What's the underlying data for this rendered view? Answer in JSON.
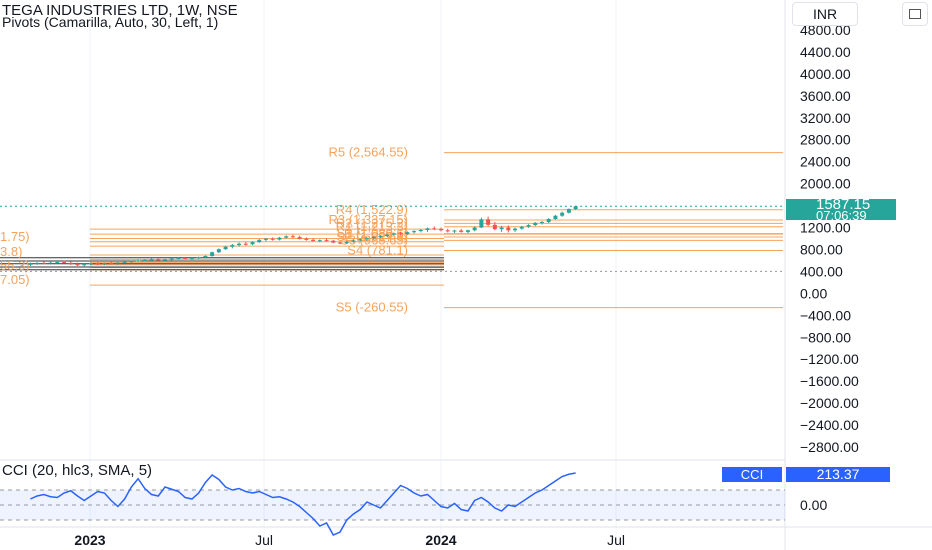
{
  "header": {
    "title": "TEGA INDUSTRIES LTD, 1W, NSE",
    "indicator": "Pivots (Camarilla, Auto, 30, Left, 1)",
    "currency": "INR"
  },
  "price_tag": {
    "price": "1587.15",
    "countdown": "07:06:39",
    "color": "#26a69a"
  },
  "cci_panel": {
    "label": "CCI (20, hlc3, SMA, 5)",
    "tag_name": "CCI",
    "tag_value": "213.37"
  },
  "colors": {
    "up": "#26a69a",
    "down": "#ef5350",
    "pivot": "#f7a35c",
    "cci": "#2962ff",
    "price_line": "#26a69a"
  },
  "chart_data": [
    {
      "type": "candlestick",
      "y_ticks": [
        "4800.00",
        "4400.00",
        "4000.00",
        "3600.00",
        "3200.00",
        "2800.00",
        "2400.00",
        "2000.00",
        "1200.00",
        "800.00",
        "400.00",
        "0.00",
        "−400.00",
        "−800.00",
        "−1200.00",
        "−1600.00",
        "−2000.00",
        "−2400.00",
        "−2800.00"
      ],
      "y_tick_values": [
        4800,
        4400,
        4000,
        3600,
        3200,
        2800,
        2400,
        2000,
        1200,
        800,
        400,
        0,
        -400,
        -800,
        -1200,
        -1600,
        -2000,
        -2400,
        -2800
      ],
      "x_ticks": [
        "2023",
        "Jul",
        "2024",
        "Jul"
      ],
      "x_tick_dates": [
        "2023-01-01",
        "2023-07-01",
        "2024-01-01",
        "2024-07-01"
      ],
      "ohlc": [
        {
          "d": "2022-10-31",
          "o": 520,
          "h": 560,
          "l": 500,
          "c": 540
        },
        {
          "d": "2022-11-07",
          "o": 540,
          "h": 570,
          "l": 520,
          "c": 555
        },
        {
          "d": "2022-11-14",
          "o": 555,
          "h": 580,
          "l": 530,
          "c": 545
        },
        {
          "d": "2022-11-21",
          "o": 545,
          "h": 575,
          "l": 525,
          "c": 560
        },
        {
          "d": "2022-11-28",
          "o": 560,
          "h": 590,
          "l": 540,
          "c": 570
        },
        {
          "d": "2022-12-05",
          "o": 570,
          "h": 600,
          "l": 545,
          "c": 555
        },
        {
          "d": "2022-12-12",
          "o": 555,
          "h": 580,
          "l": 520,
          "c": 530
        },
        {
          "d": "2022-12-19",
          "o": 530,
          "h": 560,
          "l": 500,
          "c": 515
        },
        {
          "d": "2022-12-26",
          "o": 515,
          "h": 545,
          "l": 495,
          "c": 530
        },
        {
          "d": "2023-01-02",
          "o": 530,
          "h": 560,
          "l": 510,
          "c": 545
        },
        {
          "d": "2023-01-09",
          "o": 545,
          "h": 570,
          "l": 520,
          "c": 535
        },
        {
          "d": "2023-01-16",
          "o": 535,
          "h": 560,
          "l": 515,
          "c": 550
        },
        {
          "d": "2023-01-23",
          "o": 550,
          "h": 575,
          "l": 530,
          "c": 540
        },
        {
          "d": "2023-01-30",
          "o": 540,
          "h": 570,
          "l": 520,
          "c": 560
        },
        {
          "d": "2023-02-06",
          "o": 560,
          "h": 590,
          "l": 545,
          "c": 575
        },
        {
          "d": "2023-02-13",
          "o": 575,
          "h": 600,
          "l": 555,
          "c": 590
        },
        {
          "d": "2023-02-20",
          "o": 590,
          "h": 620,
          "l": 570,
          "c": 600
        },
        {
          "d": "2023-02-27",
          "o": 600,
          "h": 625,
          "l": 580,
          "c": 610
        },
        {
          "d": "2023-03-06",
          "o": 610,
          "h": 640,
          "l": 590,
          "c": 620
        },
        {
          "d": "2023-03-13",
          "o": 620,
          "h": 640,
          "l": 595,
          "c": 605
        },
        {
          "d": "2023-03-20",
          "o": 605,
          "h": 630,
          "l": 585,
          "c": 615
        },
        {
          "d": "2023-03-27",
          "o": 615,
          "h": 650,
          "l": 600,
          "c": 635
        },
        {
          "d": "2023-04-03",
          "o": 635,
          "h": 660,
          "l": 615,
          "c": 645
        },
        {
          "d": "2023-04-10",
          "o": 645,
          "h": 665,
          "l": 620,
          "c": 630
        },
        {
          "d": "2023-04-17",
          "o": 630,
          "h": 655,
          "l": 610,
          "c": 640
        },
        {
          "d": "2023-04-24",
          "o": 640,
          "h": 670,
          "l": 625,
          "c": 655
        },
        {
          "d": "2023-05-01",
          "o": 655,
          "h": 690,
          "l": 640,
          "c": 680
        },
        {
          "d": "2023-05-08",
          "o": 680,
          "h": 760,
          "l": 670,
          "c": 750
        },
        {
          "d": "2023-05-15",
          "o": 750,
          "h": 820,
          "l": 735,
          "c": 805
        },
        {
          "d": "2023-05-22",
          "o": 805,
          "h": 870,
          "l": 790,
          "c": 850
        },
        {
          "d": "2023-05-29",
          "o": 850,
          "h": 900,
          "l": 820,
          "c": 880
        },
        {
          "d": "2023-06-05",
          "o": 880,
          "h": 930,
          "l": 850,
          "c": 905
        },
        {
          "d": "2023-06-12",
          "o": 905,
          "h": 940,
          "l": 870,
          "c": 895
        },
        {
          "d": "2023-06-19",
          "o": 895,
          "h": 950,
          "l": 880,
          "c": 935
        },
        {
          "d": "2023-06-26",
          "o": 935,
          "h": 990,
          "l": 920,
          "c": 975
        },
        {
          "d": "2023-07-03",
          "o": 975,
          "h": 1010,
          "l": 950,
          "c": 995
        },
        {
          "d": "2023-07-10",
          "o": 995,
          "h": 1020,
          "l": 960,
          "c": 980
        },
        {
          "d": "2023-07-17",
          "o": 980,
          "h": 1030,
          "l": 965,
          "c": 1015
        },
        {
          "d": "2023-07-24",
          "o": 1015,
          "h": 1060,
          "l": 1000,
          "c": 1040
        },
        {
          "d": "2023-07-31",
          "o": 1040,
          "h": 1070,
          "l": 1010,
          "c": 1025
        },
        {
          "d": "2023-08-07",
          "o": 1025,
          "h": 1050,
          "l": 985,
          "c": 995
        },
        {
          "d": "2023-08-14",
          "o": 995,
          "h": 1020,
          "l": 960,
          "c": 975
        },
        {
          "d": "2023-08-21",
          "o": 975,
          "h": 1000,
          "l": 940,
          "c": 955
        },
        {
          "d": "2023-08-28",
          "o": 955,
          "h": 985,
          "l": 930,
          "c": 970
        },
        {
          "d": "2023-09-04",
          "o": 970,
          "h": 1000,
          "l": 945,
          "c": 960
        },
        {
          "d": "2023-09-11",
          "o": 960,
          "h": 975,
          "l": 915,
          "c": 925
        },
        {
          "d": "2023-09-18",
          "o": 925,
          "h": 950,
          "l": 895,
          "c": 915
        },
        {
          "d": "2023-09-25",
          "o": 915,
          "h": 955,
          "l": 900,
          "c": 940
        },
        {
          "d": "2023-10-02",
          "o": 940,
          "h": 980,
          "l": 925,
          "c": 965
        },
        {
          "d": "2023-10-09",
          "o": 965,
          "h": 1000,
          "l": 945,
          "c": 985
        },
        {
          "d": "2023-10-16",
          "o": 985,
          "h": 1020,
          "l": 960,
          "c": 1005
        },
        {
          "d": "2023-10-23",
          "o": 1005,
          "h": 1040,
          "l": 985,
          "c": 1030
        },
        {
          "d": "2023-10-30",
          "o": 1030,
          "h": 1060,
          "l": 1005,
          "c": 1045
        },
        {
          "d": "2023-11-06",
          "o": 1045,
          "h": 1080,
          "l": 1025,
          "c": 1070
        },
        {
          "d": "2023-11-13",
          "o": 1070,
          "h": 1110,
          "l": 1050,
          "c": 1095
        },
        {
          "d": "2023-11-20",
          "o": 1095,
          "h": 1120,
          "l": 1060,
          "c": 1080
        },
        {
          "d": "2023-11-27",
          "o": 1080,
          "h": 1130,
          "l": 1065,
          "c": 1115
        },
        {
          "d": "2023-12-04",
          "o": 1115,
          "h": 1150,
          "l": 1090,
          "c": 1135
        },
        {
          "d": "2023-12-11",
          "o": 1135,
          "h": 1170,
          "l": 1110,
          "c": 1155
        },
        {
          "d": "2023-12-18",
          "o": 1155,
          "h": 1200,
          "l": 1120,
          "c": 1185
        },
        {
          "d": "2023-12-25",
          "o": 1185,
          "h": 1220,
          "l": 1150,
          "c": 1170
        },
        {
          "d": "2024-01-01",
          "o": 1170,
          "h": 1200,
          "l": 1130,
          "c": 1150
        },
        {
          "d": "2024-01-08",
          "o": 1150,
          "h": 1180,
          "l": 1110,
          "c": 1130
        },
        {
          "d": "2024-01-15",
          "o": 1130,
          "h": 1160,
          "l": 1100,
          "c": 1145
        },
        {
          "d": "2024-01-22",
          "o": 1145,
          "h": 1175,
          "l": 1105,
          "c": 1120
        },
        {
          "d": "2024-01-29",
          "o": 1120,
          "h": 1160,
          "l": 1095,
          "c": 1150
        },
        {
          "d": "2024-02-05",
          "o": 1150,
          "h": 1220,
          "l": 1130,
          "c": 1200
        },
        {
          "d": "2024-02-12",
          "o": 1200,
          "h": 1380,
          "l": 1190,
          "c": 1350
        },
        {
          "d": "2024-02-19",
          "o": 1350,
          "h": 1400,
          "l": 1220,
          "c": 1250
        },
        {
          "d": "2024-02-26",
          "o": 1250,
          "h": 1300,
          "l": 1150,
          "c": 1170
        },
        {
          "d": "2024-03-04",
          "o": 1170,
          "h": 1230,
          "l": 1120,
          "c": 1200
        },
        {
          "d": "2024-03-11",
          "o": 1200,
          "h": 1240,
          "l": 1110,
          "c": 1150
        },
        {
          "d": "2024-03-18",
          "o": 1150,
          "h": 1200,
          "l": 1120,
          "c": 1180
        },
        {
          "d": "2024-03-25",
          "o": 1180,
          "h": 1230,
          "l": 1160,
          "c": 1215
        },
        {
          "d": "2024-04-01",
          "o": 1215,
          "h": 1260,
          "l": 1195,
          "c": 1245
        },
        {
          "d": "2024-04-08",
          "o": 1245,
          "h": 1300,
          "l": 1225,
          "c": 1285
        },
        {
          "d": "2024-04-15",
          "o": 1285,
          "h": 1320,
          "l": 1255,
          "c": 1300
        },
        {
          "d": "2024-04-22",
          "o": 1300,
          "h": 1370,
          "l": 1280,
          "c": 1355
        },
        {
          "d": "2024-04-29",
          "o": 1355,
          "h": 1430,
          "l": 1340,
          "c": 1415
        },
        {
          "d": "2024-05-06",
          "o": 1415,
          "h": 1490,
          "l": 1395,
          "c": 1470
        },
        {
          "d": "2024-05-13",
          "o": 1470,
          "h": 1550,
          "l": 1455,
          "c": 1535
        },
        {
          "d": "2024-05-20",
          "o": 1535,
          "h": 1600,
          "l": 1520,
          "c": 1587.15
        }
      ],
      "pivots_period_2": {
        "levels": [
          {
            "name": "R5",
            "label": "R5 (2,564.55)",
            "value": 2564.55
          },
          {
            "name": "R4",
            "label": "R4 (1,522.9)",
            "value": 1522.9
          },
          {
            "name": "R3",
            "label": "R3 (1,337.15)",
            "value": 1337.15
          },
          {
            "name": "R2",
            "label": "R2 (1,275.2)",
            "value": 1275.2
          },
          {
            "name": "R1",
            "label": "R1 (1,213.3)",
            "value": 1213.3
          },
          {
            "name": "P",
            "label": "P (1,080.6)",
            "value": 1080.6
          },
          {
            "name": "S1",
            "label": "S1 (1,089.5)",
            "value": 1089.5
          },
          {
            "name": "S2",
            "label": "S2 (1,027.6)",
            "value": 1027.6
          },
          {
            "name": "S3",
            "label": "S3 (965.65)",
            "value": 965.65
          },
          {
            "name": "S4",
            "label": "S4 (781.1)",
            "value": 781.1
          },
          {
            "name": "S5",
            "label": "S5 (-260.55)",
            "value": -260.55
          }
        ]
      },
      "pivots_period_1_labels": [
        "1.75)",
        "3.8)",
        "55.3)",
        "7.05)"
      ]
    },
    {
      "type": "line",
      "name": "CCI",
      "reference_lines": [
        100,
        0,
        -100
      ],
      "y_ticks": [
        "0.00"
      ],
      "values": [
        {
          "d": "2022-10-31",
          "v": 40
        },
        {
          "d": "2022-11-07",
          "v": 60
        },
        {
          "d": "2022-11-14",
          "v": 70
        },
        {
          "d": "2022-11-21",
          "v": 55
        },
        {
          "d": "2022-11-28",
          "v": 50
        },
        {
          "d": "2022-12-05",
          "v": 80
        },
        {
          "d": "2022-12-12",
          "v": 95
        },
        {
          "d": "2022-12-19",
          "v": 60
        },
        {
          "d": "2022-12-26",
          "v": 30
        },
        {
          "d": "2023-01-02",
          "v": 60
        },
        {
          "d": "2023-01-09",
          "v": 90
        },
        {
          "d": "2023-01-16",
          "v": 80
        },
        {
          "d": "2023-01-23",
          "v": 30
        },
        {
          "d": "2023-01-30",
          "v": -10
        },
        {
          "d": "2023-02-06",
          "v": 40
        },
        {
          "d": "2023-02-13",
          "v": 120
        },
        {
          "d": "2023-02-20",
          "v": 175
        },
        {
          "d": "2023-02-27",
          "v": 110
        },
        {
          "d": "2023-03-06",
          "v": 70
        },
        {
          "d": "2023-03-13",
          "v": 60
        },
        {
          "d": "2023-03-20",
          "v": 120
        },
        {
          "d": "2023-03-27",
          "v": 105
        },
        {
          "d": "2023-04-03",
          "v": 90
        },
        {
          "d": "2023-04-10",
          "v": 50
        },
        {
          "d": "2023-04-17",
          "v": 40
        },
        {
          "d": "2023-04-24",
          "v": 80
        },
        {
          "d": "2023-05-01",
          "v": 150
        },
        {
          "d": "2023-05-08",
          "v": 200
        },
        {
          "d": "2023-05-15",
          "v": 170
        },
        {
          "d": "2023-05-22",
          "v": 120
        },
        {
          "d": "2023-05-29",
          "v": 100
        },
        {
          "d": "2023-06-05",
          "v": 110
        },
        {
          "d": "2023-06-12",
          "v": 90
        },
        {
          "d": "2023-06-19",
          "v": 80
        },
        {
          "d": "2023-06-26",
          "v": 90
        },
        {
          "d": "2023-07-03",
          "v": 70
        },
        {
          "d": "2023-07-10",
          "v": 50
        },
        {
          "d": "2023-07-17",
          "v": 55
        },
        {
          "d": "2023-07-24",
          "v": 40
        },
        {
          "d": "2023-07-31",
          "v": 20
        },
        {
          "d": "2023-08-07",
          "v": -10
        },
        {
          "d": "2023-08-14",
          "v": -50
        },
        {
          "d": "2023-08-21",
          "v": -90
        },
        {
          "d": "2023-08-28",
          "v": -140
        },
        {
          "d": "2023-09-04",
          "v": -120
        },
        {
          "d": "2023-09-11",
          "v": -200
        },
        {
          "d": "2023-09-18",
          "v": -180
        },
        {
          "d": "2023-09-25",
          "v": -100
        },
        {
          "d": "2023-10-02",
          "v": -60
        },
        {
          "d": "2023-10-09",
          "v": -30
        },
        {
          "d": "2023-10-16",
          "v": 20
        },
        {
          "d": "2023-10-23",
          "v": 0
        },
        {
          "d": "2023-10-30",
          "v": -20
        },
        {
          "d": "2023-11-06",
          "v": 30
        },
        {
          "d": "2023-11-13",
          "v": 80
        },
        {
          "d": "2023-11-20",
          "v": 130
        },
        {
          "d": "2023-11-27",
          "v": 110
        },
        {
          "d": "2023-12-04",
          "v": 80
        },
        {
          "d": "2023-12-11",
          "v": 60
        },
        {
          "d": "2023-12-18",
          "v": 70
        },
        {
          "d": "2023-12-25",
          "v": 30
        },
        {
          "d": "2024-01-01",
          "v": -10
        },
        {
          "d": "2024-01-08",
          "v": -20
        },
        {
          "d": "2024-01-15",
          "v": 10
        },
        {
          "d": "2024-01-22",
          "v": -30
        },
        {
          "d": "2024-01-29",
          "v": -40
        },
        {
          "d": "2024-02-05",
          "v": 30
        },
        {
          "d": "2024-02-12",
          "v": 50
        },
        {
          "d": "2024-02-19",
          "v": 20
        },
        {
          "d": "2024-02-26",
          "v": -20
        },
        {
          "d": "2024-03-04",
          "v": -40
        },
        {
          "d": "2024-03-11",
          "v": 0
        },
        {
          "d": "2024-03-18",
          "v": -10
        },
        {
          "d": "2024-03-25",
          "v": 20
        },
        {
          "d": "2024-04-01",
          "v": 50
        },
        {
          "d": "2024-04-08",
          "v": 80
        },
        {
          "d": "2024-04-15",
          "v": 100
        },
        {
          "d": "2024-04-22",
          "v": 130
        },
        {
          "d": "2024-04-29",
          "v": 160
        },
        {
          "d": "2024-05-06",
          "v": 190
        },
        {
          "d": "2024-05-13",
          "v": 205
        },
        {
          "d": "2024-05-20",
          "v": 213.37
        }
      ]
    }
  ]
}
